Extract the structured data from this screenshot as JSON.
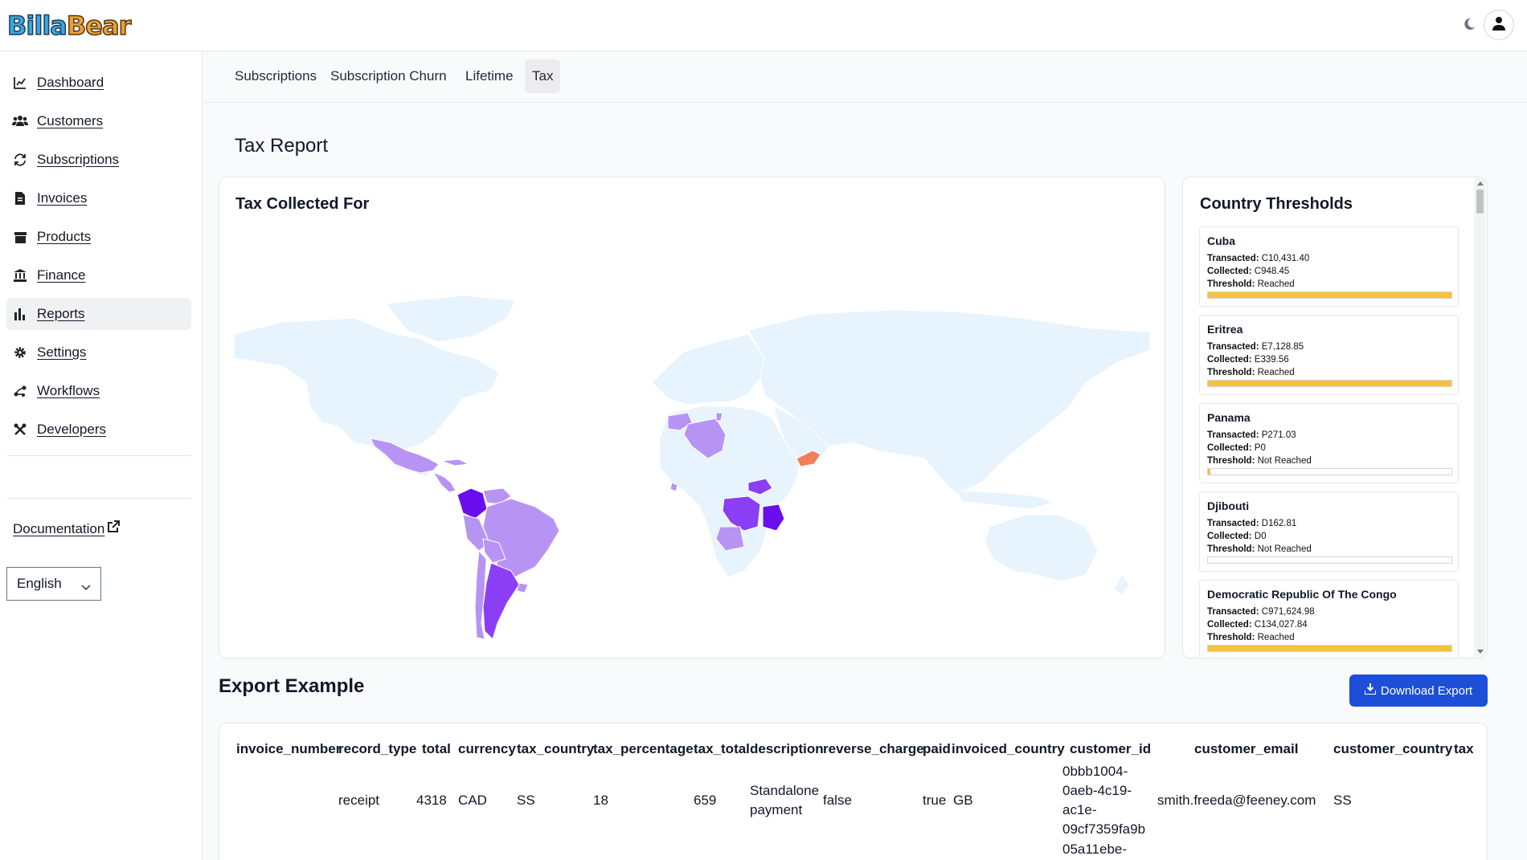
{
  "app": {
    "logo_part1": "Billa",
    "logo_part2": "Bear"
  },
  "sidebar": {
    "items": [
      {
        "label": "Dashboard",
        "icon": "chart-line-icon"
      },
      {
        "label": "Customers",
        "icon": "users-icon"
      },
      {
        "label": "Subscriptions",
        "icon": "refresh-icon"
      },
      {
        "label": "Invoices",
        "icon": "invoice-icon"
      },
      {
        "label": "Products",
        "icon": "box-icon"
      },
      {
        "label": "Finance",
        "icon": "bank-icon"
      },
      {
        "label": "Reports",
        "icon": "bar-chart-icon"
      },
      {
        "label": "Settings",
        "icon": "gear-icon"
      },
      {
        "label": "Workflows",
        "icon": "workflow-icon"
      },
      {
        "label": "Developers",
        "icon": "tools-icon"
      }
    ],
    "active": "Reports",
    "documentation": "Documentation",
    "language": "English"
  },
  "tabs": [
    "Subscriptions",
    "Subscription Churn",
    "Lifetime",
    "Tax"
  ],
  "active_tab": "Tax",
  "page": {
    "title": "Tax Report"
  },
  "map": {
    "title": "Tax Collected For"
  },
  "thresholds": {
    "title": "Country Thresholds",
    "labels": {
      "transacted": "Transacted:",
      "collected": "Collected:",
      "threshold": "Threshold:"
    },
    "items": [
      {
        "name": "Cuba",
        "transacted": "C10,431.40",
        "collected": "C948.45",
        "threshold": "Reached",
        "progress": 1.0
      },
      {
        "name": "Eritrea",
        "transacted": "E7,128.85",
        "collected": "E339.56",
        "threshold": "Reached",
        "progress": 1.0
      },
      {
        "name": "Panama",
        "transacted": "P271.03",
        "collected": "P0",
        "threshold": "Not Reached",
        "progress": 0.01
      },
      {
        "name": "Djibouti",
        "transacted": "D162.81",
        "collected": "D0",
        "threshold": "Not Reached",
        "progress": 0.0
      },
      {
        "name": "Democratic Republic Of The Congo",
        "transacted": "C971,624.98",
        "collected": "C134,027.84",
        "threshold": "Reached",
        "progress": 1.0
      }
    ]
  },
  "export": {
    "title": "Export Example",
    "download_label": "Download Export",
    "columns": [
      "invoice_number",
      "record_type",
      "total",
      "currency",
      "tax_country",
      "tax_percentage",
      "tax_total",
      "description",
      "reverse_charge",
      "paid",
      "invoiced_country",
      "customer_id",
      "customer_email",
      "customer_country",
      "tax"
    ],
    "row": {
      "invoice_number": "",
      "record_type": "receipt",
      "total": "4318",
      "currency": "CAD",
      "tax_country": "SS",
      "tax_percentage": "18",
      "tax_total": "659",
      "description_1": "Standalone",
      "description_2": "payment",
      "reverse_charge": "false",
      "paid": "true",
      "invoiced_country": "GB",
      "customer_id_lines": [
        "0bbb1004-",
        "0aeb-4c19-",
        "ac1e-",
        "09cf7359fa9b",
        "05a11ebe-"
      ],
      "customer_email": "smith.freeda@feeney.com",
      "customer_country": "SS"
    }
  },
  "colors": {
    "accent": "#1d4ed8",
    "progress": "#f6c23e",
    "map_base": "#e7f3fd",
    "map_light": "#b794f4",
    "map_mid": "#8b3ff5",
    "map_dark": "#6a0ef0",
    "map_hot": "#f0805a"
  }
}
